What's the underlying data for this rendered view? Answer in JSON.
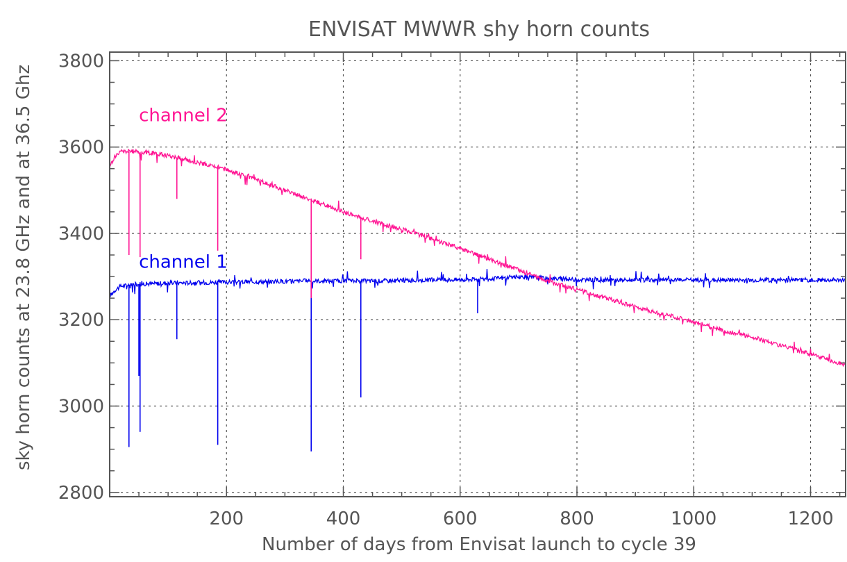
{
  "chart_data": {
    "type": "line",
    "title": "ENVISAT   MWWR    shy horn counts",
    "xlabel": "Number of days from Envisat launch to cycle 39",
    "ylabel": "sky horn counts at 23.8 GHz and at 36.5 Ghz",
    "xlim": [
      0,
      1260
    ],
    "ylim": [
      2790,
      3820
    ],
    "x_ticks": [
      200,
      400,
      600,
      800,
      1000,
      1200
    ],
    "y_ticks": [
      2800,
      3000,
      3200,
      3400,
      3600,
      3800
    ],
    "grid": true,
    "series": [
      {
        "name": "channel 1",
        "color": "#0000ee",
        "x": [
          0,
          10,
          20,
          40,
          60,
          80,
          100,
          150,
          200,
          250,
          300,
          350,
          400,
          450,
          500,
          550,
          600,
          650,
          700,
          750,
          800,
          850,
          900,
          950,
          1000,
          1050,
          1100,
          1150,
          1200,
          1260
        ],
        "y": [
          3255,
          3270,
          3278,
          3282,
          3283,
          3284,
          3285,
          3286,
          3287,
          3288,
          3289,
          3290,
          3290,
          3290,
          3291,
          3292,
          3293,
          3294,
          3300,
          3296,
          3293,
          3292,
          3292,
          3292,
          3292,
          3292,
          3292,
          3292,
          3292,
          3292
        ],
        "spikes": [
          {
            "x": 33,
            "y": 2905
          },
          {
            "x": 50,
            "y": 3070
          },
          {
            "x": 52,
            "y": 2940
          },
          {
            "x": 115,
            "y": 3155
          },
          {
            "x": 185,
            "y": 2910
          },
          {
            "x": 345,
            "y": 2895
          },
          {
            "x": 430,
            "y": 3020
          },
          {
            "x": 630,
            "y": 3215
          }
        ]
      },
      {
        "name": "channel 2",
        "color": "#ff1493",
        "x": [
          0,
          10,
          20,
          40,
          60,
          80,
          100,
          150,
          200,
          250,
          300,
          350,
          400,
          450,
          500,
          550,
          600,
          650,
          700,
          750,
          800,
          850,
          900,
          950,
          1000,
          1050,
          1100,
          1150,
          1200,
          1260
        ],
        "y": [
          3555,
          3580,
          3590,
          3590,
          3588,
          3585,
          3580,
          3565,
          3548,
          3525,
          3500,
          3475,
          3450,
          3428,
          3410,
          3388,
          3365,
          3340,
          3315,
          3290,
          3270,
          3250,
          3230,
          3212,
          3195,
          3175,
          3160,
          3140,
          3120,
          3095
        ],
        "spikes": [
          {
            "x": 33,
            "y": 3350
          },
          {
            "x": 52,
            "y": 3345
          },
          {
            "x": 115,
            "y": 3480
          },
          {
            "x": 185,
            "y": 3360
          },
          {
            "x": 345,
            "y": 3250
          },
          {
            "x": 430,
            "y": 3340
          }
        ]
      }
    ],
    "annotations": [
      {
        "text": "channel 2",
        "x": 50,
        "y": 3660,
        "color": "#ff1493"
      },
      {
        "text": "channel 1",
        "x": 50,
        "y": 3320,
        "color": "#0000ee"
      }
    ]
  }
}
